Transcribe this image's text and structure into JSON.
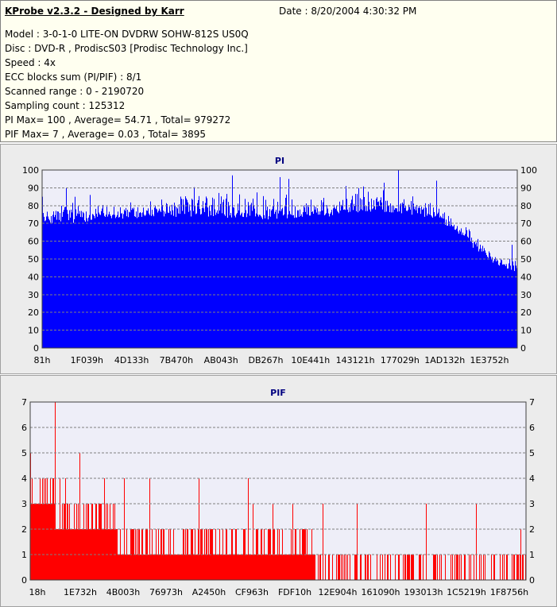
{
  "header": {
    "title": "KProbe v2.3.2 - Designed by Karr",
    "date": "Date : 8/20/2004 4:30:32 PM",
    "lines": [
      "Model : 3-0-1-0 LITE-ON DVDRW SOHW-812S  US0Q",
      "Disc : DVD-R , ProdiscS03   [Prodisc Technology Inc.]",
      "Speed : 4x",
      "ECC blocks sum (PI/PIF) : 8/1",
      "Scanned range : 0 - 2190720",
      "Sampling count : 125312",
      "PI Max= 100 , Average= 54.71 , Total= 979272",
      "PIF Max= 7 , Average= 0.03 , Total= 3895"
    ]
  },
  "colors": {
    "pi": "#0000ff",
    "pif": "#ff0000",
    "plot_bg": "#eeeef8",
    "title": "#000080",
    "grid": "#808080"
  },
  "chart_data": [
    {
      "type": "bar",
      "title": "PI",
      "ylim": [
        0,
        100
      ],
      "yticks": [
        0,
        10,
        20,
        30,
        40,
        50,
        60,
        70,
        80,
        90,
        100
      ],
      "xtick_labels": [
        "81h",
        "1F039h",
        "4D133h",
        "7B470h",
        "AB043h",
        "DB267h",
        "10E441h",
        "143121h",
        "177029h",
        "1AD132h",
        "1E3752h"
      ],
      "grid": true,
      "envelope": [
        {
          "x": 0.0,
          "base": 70,
          "peak": 82
        },
        {
          "x": 0.03,
          "base": 71,
          "peak": 84
        },
        {
          "x": 0.08,
          "base": 72,
          "peak": 88
        },
        {
          "x": 0.15,
          "base": 73,
          "peak": 83
        },
        {
          "x": 0.25,
          "base": 75,
          "peak": 86
        },
        {
          "x": 0.35,
          "base": 74,
          "peak": 92
        },
        {
          "x": 0.45,
          "base": 73,
          "peak": 89
        },
        {
          "x": 0.55,
          "base": 74,
          "peak": 90
        },
        {
          "x": 0.65,
          "base": 76,
          "peak": 92
        },
        {
          "x": 0.72,
          "base": 77,
          "peak": 95
        },
        {
          "x": 0.78,
          "base": 76,
          "peak": 88
        },
        {
          "x": 0.84,
          "base": 72,
          "peak": 80
        },
        {
          "x": 0.88,
          "base": 64,
          "peak": 72
        },
        {
          "x": 0.92,
          "base": 55,
          "peak": 63
        },
        {
          "x": 0.96,
          "base": 47,
          "peak": 55
        },
        {
          "x": 1.0,
          "base": 44,
          "peak": 52
        }
      ],
      "spikes": [
        {
          "x": 0.0,
          "y": 85
        },
        {
          "x": 0.05,
          "y": 90
        },
        {
          "x": 0.1,
          "y": 86
        },
        {
          "x": 0.4,
          "y": 97
        },
        {
          "x": 0.5,
          "y": 96
        },
        {
          "x": 0.52,
          "y": 95
        },
        {
          "x": 0.75,
          "y": 100
        },
        {
          "x": 0.83,
          "y": 94
        },
        {
          "x": 0.99,
          "y": 58
        }
      ]
    },
    {
      "type": "bar",
      "title": "PIF",
      "ylim": [
        0,
        7
      ],
      "yticks": [
        0,
        1,
        2,
        3,
        4,
        5,
        6,
        7
      ],
      "xtick_labels": [
        "18h",
        "1E732h",
        "4B003h",
        "76973h",
        "A2450h",
        "CF963h",
        "FDF10h",
        "12E904h",
        "161090h",
        "193013h",
        "1C5219h",
        "1F8756h"
      ],
      "grid": true,
      "envelope": [
        {
          "x": 0.0,
          "base": 3,
          "peak": 4
        },
        {
          "x": 0.1,
          "base": 2,
          "peak": 3
        },
        {
          "x": 0.15,
          "base": 2,
          "peak": 3
        },
        {
          "x": 0.2,
          "base": 1,
          "peak": 2
        },
        {
          "x": 0.4,
          "base": 1,
          "peak": 2
        },
        {
          "x": 0.55,
          "base": 1,
          "peak": 2
        },
        {
          "x": 0.6,
          "base": 0,
          "peak": 1
        },
        {
          "x": 1.0,
          "base": 0,
          "peak": 1
        }
      ],
      "spikes": [
        {
          "x": 0.05,
          "y": 7
        },
        {
          "x": 0.1,
          "y": 5
        },
        {
          "x": 0.0,
          "y": 5
        },
        {
          "x": 0.02,
          "y": 4
        },
        {
          "x": 0.03,
          "y": 4
        },
        {
          "x": 0.06,
          "y": 4
        },
        {
          "x": 0.07,
          "y": 4
        },
        {
          "x": 0.15,
          "y": 4
        },
        {
          "x": 0.19,
          "y": 4
        },
        {
          "x": 0.24,
          "y": 4
        },
        {
          "x": 0.34,
          "y": 4
        },
        {
          "x": 0.44,
          "y": 4
        },
        {
          "x": 0.45,
          "y": 3
        },
        {
          "x": 0.49,
          "y": 3
        },
        {
          "x": 0.53,
          "y": 3
        },
        {
          "x": 0.59,
          "y": 3
        },
        {
          "x": 0.66,
          "y": 3
        },
        {
          "x": 0.8,
          "y": 3
        },
        {
          "x": 0.9,
          "y": 3
        },
        {
          "x": 0.99,
          "y": 2
        }
      ]
    }
  ]
}
